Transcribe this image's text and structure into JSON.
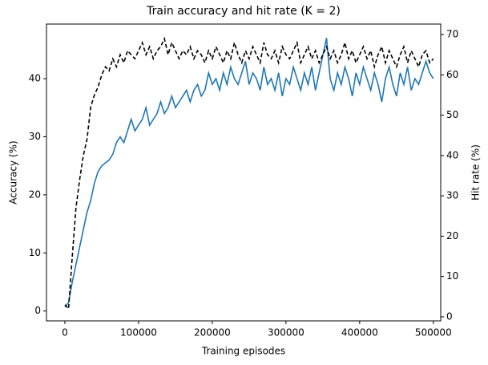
{
  "chart_data": {
    "type": "line",
    "title": "Train accuracy and hit rate (K = 2)",
    "x_label": "Training episodes",
    "y_label": "Accuracy (%)",
    "y2_label": "Hit rate (%)",
    "x": [
      0,
      5000,
      10000,
      15000,
      20000,
      25000,
      30000,
      35000,
      40000,
      45000,
      50000,
      55000,
      60000,
      65000,
      70000,
      75000,
      80000,
      85000,
      90000,
      95000,
      100000,
      105000,
      110000,
      115000,
      120000,
      125000,
      130000,
      135000,
      140000,
      145000,
      150000,
      155000,
      160000,
      165000,
      170000,
      175000,
      180000,
      185000,
      190000,
      195000,
      200000,
      205000,
      210000,
      215000,
      220000,
      225000,
      230000,
      235000,
      240000,
      245000,
      250000,
      255000,
      260000,
      265000,
      270000,
      275000,
      280000,
      285000,
      290000,
      295000,
      300000,
      305000,
      310000,
      315000,
      320000,
      325000,
      330000,
      335000,
      340000,
      345000,
      350000,
      355000,
      360000,
      365000,
      370000,
      375000,
      380000,
      385000,
      390000,
      395000,
      400000,
      405000,
      410000,
      415000,
      420000,
      425000,
      430000,
      435000,
      440000,
      445000,
      450000,
      455000,
      460000,
      465000,
      470000,
      475000,
      480000,
      485000,
      490000,
      495000,
      500000
    ],
    "series": [
      {
        "name": "Accuracy",
        "color": "#1f77b4",
        "linestyle": "solid",
        "axis": "y",
        "values": [
          0.7,
          1.5,
          5,
          8,
          11,
          14,
          17,
          19,
          22,
          24,
          25,
          25.5,
          26,
          27,
          29,
          30,
          29,
          31,
          33,
          31,
          32,
          33,
          35,
          32,
          33,
          34,
          36,
          34,
          35,
          37,
          35,
          36,
          37,
          38,
          36,
          38,
          39,
          37,
          38,
          41,
          39,
          40,
          38,
          41,
          39,
          42,
          40,
          39,
          41,
          43,
          39,
          41,
          40,
          38,
          42,
          39,
          40,
          38,
          41,
          37,
          40,
          39,
          42,
          40,
          38,
          41,
          39,
          42,
          38,
          41,
          44,
          47,
          40,
          38,
          41,
          39,
          42,
          40,
          37,
          41,
          39,
          42,
          40,
          38,
          41,
          39,
          36,
          40,
          42,
          39,
          37,
          41,
          39,
          42,
          38,
          40,
          39,
          41,
          43,
          41,
          40
        ]
      },
      {
        "name": "Hit rate",
        "color": "#000000",
        "linestyle": "dashed",
        "axis": "y2",
        "values": [
          3,
          2,
          15,
          27,
          34,
          40,
          44,
          52,
          55,
          57,
          60,
          62,
          61,
          64,
          62,
          65,
          63,
          66,
          65,
          64,
          66,
          68,
          65,
          67,
          64,
          66,
          67,
          69,
          65,
          68,
          66,
          64,
          66,
          65,
          67,
          64,
          66,
          65,
          63,
          66,
          64,
          67,
          65,
          63,
          66,
          64,
          68,
          65,
          63,
          66,
          64,
          67,
          65,
          63,
          68,
          65,
          64,
          66,
          63,
          67,
          65,
          64,
          66,
          68,
          63,
          65,
          67,
          64,
          66,
          63,
          65,
          67,
          64,
          66,
          63,
          65,
          68,
          64,
          66,
          63,
          65,
          67,
          64,
          66,
          62,
          65,
          67,
          63,
          66,
          64,
          62,
          65,
          67,
          63,
          66,
          64,
          62,
          65,
          66,
          63,
          64
        ]
      }
    ],
    "xlim": [
      -25000,
      510000
    ],
    "xticks": [
      0,
      100000,
      200000,
      300000,
      400000,
      500000
    ],
    "ylim": [
      -1.7,
      49.4
    ],
    "yticks": [
      0,
      10,
      20,
      30,
      40
    ],
    "y2lim": [
      -1,
      72.6
    ],
    "y2ticks": [
      0,
      10,
      20,
      30,
      40,
      50,
      60,
      70
    ]
  }
}
